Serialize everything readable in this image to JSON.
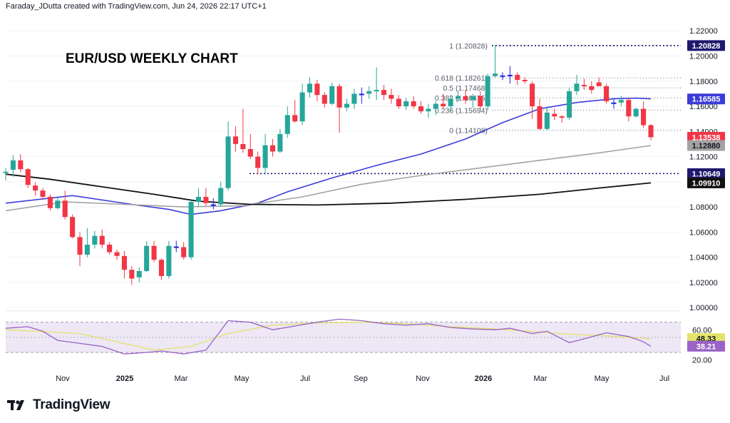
{
  "attribution": "Faraday_JDutta created with TradingView.com, Jun 24, 2026 22:17 UTC+1",
  "brand": {
    "name": "TradingView",
    "logo_icon": "tradingview-logo-icon"
  },
  "colors": {
    "up": "#26a69a",
    "down": "#f23645",
    "neutral": "#1e22e8",
    "ma_fast": "#3c3cd9",
    "ma_mid": "#a3a3a3",
    "ma_slow": "#111111",
    "rsi": "#9a63c7",
    "rsi_ma": "#e3e36b",
    "rsi_band": "#ede7f6"
  },
  "chart_data": [
    {
      "type": "candlestick",
      "title": "EUR/USD WEEKLY CHART",
      "x_labels": [
        "Nov",
        "2025",
        "Mar",
        "May",
        "Jul",
        "Sep",
        "Nov",
        "2026",
        "Mar",
        "May",
        "Jul"
      ],
      "y_ticks": [
        "1.22000",
        "1.20000",
        "1.18000",
        "1.16000",
        "1.14000",
        "1.12000",
        "1.10000",
        "1.08000",
        "1.06000",
        "1.04000",
        "1.02000",
        "1.00000"
      ],
      "ylim": [
        0.9995,
        1.2275
      ],
      "candles": [
        {
          "o": 1.107,
          "h": 1.111,
          "l": 1.101,
          "c": 1.108
        },
        {
          "o": 1.1095,
          "h": 1.121,
          "l": 1.104,
          "c": 1.117
        },
        {
          "o": 1.117,
          "h": 1.122,
          "l": 1.1075,
          "c": 1.11
        },
        {
          "o": 1.11,
          "h": 1.111,
          "l": 1.095,
          "c": 1.0975
        },
        {
          "o": 1.097,
          "h": 1.0995,
          "l": 1.089,
          "c": 1.093
        },
        {
          "o": 1.093,
          "h": 1.095,
          "l": 1.086,
          "c": 1.088
        },
        {
          "o": 1.088,
          "h": 1.09,
          "l": 1.077,
          "c": 1.079
        },
        {
          "o": 1.079,
          "h": 1.087,
          "l": 1.078,
          "c": 1.085
        },
        {
          "o": 1.085,
          "h": 1.093,
          "l": 1.07,
          "c": 1.072
        },
        {
          "o": 1.072,
          "h": 1.074,
          "l": 1.055,
          "c": 1.056
        },
        {
          "o": 1.056,
          "h": 1.06,
          "l": 1.033,
          "c": 1.042
        },
        {
          "o": 1.042,
          "h": 1.063,
          "l": 1.04,
          "c": 1.05
        },
        {
          "o": 1.05,
          "h": 1.061,
          "l": 1.047,
          "c": 1.057
        },
        {
          "o": 1.057,
          "h": 1.062,
          "l": 1.047,
          "c": 1.05
        },
        {
          "o": 1.05,
          "h": 1.052,
          "l": 1.042,
          "c": 1.044
        },
        {
          "o": 1.044,
          "h": 1.046,
          "l": 1.038,
          "c": 1.041
        },
        {
          "o": 1.041,
          "h": 1.045,
          "l": 1.023,
          "c": 1.03
        },
        {
          "o": 1.03,
          "h": 1.033,
          "l": 1.018,
          "c": 1.023
        },
        {
          "o": 1.024,
          "h": 1.032,
          "l": 1.02,
          "c": 1.029
        },
        {
          "o": 1.029,
          "h": 1.053,
          "l": 1.028,
          "c": 1.049
        },
        {
          "o": 1.049,
          "h": 1.053,
          "l": 1.036,
          "c": 1.038
        },
        {
          "o": 1.038,
          "h": 1.039,
          "l": 1.022,
          "c": 1.025
        },
        {
          "o": 1.025,
          "h": 1.053,
          "l": 1.023,
          "c": 1.049
        },
        {
          "o": 1.0485,
          "h": 1.053,
          "l": 1.044,
          "c": 1.048
        },
        {
          "o": 1.048,
          "h": 1.052,
          "l": 1.038,
          "c": 1.04
        },
        {
          "o": 1.04,
          "h": 1.085,
          "l": 1.038,
          "c": 1.084
        },
        {
          "o": 1.084,
          "h": 1.095,
          "l": 1.08,
          "c": 1.088
        },
        {
          "o": 1.088,
          "h": 1.095,
          "l": 1.081,
          "c": 1.083
        },
        {
          "o": 1.0815,
          "h": 1.087,
          "l": 1.078,
          "c": 1.082
        },
        {
          "o": 1.082,
          "h": 1.1,
          "l": 1.08,
          "c": 1.095
        },
        {
          "o": 1.095,
          "h": 1.148,
          "l": 1.093,
          "c": 1.136
        },
        {
          "o": 1.136,
          "h": 1.144,
          "l": 1.124,
          "c": 1.13
        },
        {
          "o": 1.13,
          "h": 1.158,
          "l": 1.123,
          "c": 1.126
        },
        {
          "o": 1.126,
          "h": 1.138,
          "l": 1.118,
          "c": 1.12
        },
        {
          "o": 1.12,
          "h": 1.124,
          "l": 1.106,
          "c": 1.111
        },
        {
          "o": 1.111,
          "h": 1.138,
          "l": 1.106,
          "c": 1.129
        },
        {
          "o": 1.129,
          "h": 1.134,
          "l": 1.12,
          "c": 1.124
        },
        {
          "o": 1.124,
          "h": 1.142,
          "l": 1.123,
          "c": 1.138
        },
        {
          "o": 1.138,
          "h": 1.16,
          "l": 1.135,
          "c": 1.153
        },
        {
          "o": 1.153,
          "h": 1.165,
          "l": 1.147,
          "c": 1.148
        },
        {
          "o": 1.148,
          "h": 1.178,
          "l": 1.145,
          "c": 1.171
        },
        {
          "o": 1.171,
          "h": 1.183,
          "l": 1.167,
          "c": 1.178
        },
        {
          "o": 1.178,
          "h": 1.181,
          "l": 1.164,
          "c": 1.169
        },
        {
          "o": 1.169,
          "h": 1.171,
          "l": 1.159,
          "c": 1.162
        },
        {
          "o": 1.162,
          "h": 1.179,
          "l": 1.161,
          "c": 1.176
        },
        {
          "o": 1.176,
          "h": 1.178,
          "l": 1.139,
          "c": 1.159
        },
        {
          "o": 1.159,
          "h": 1.166,
          "l": 1.156,
          "c": 1.162
        },
        {
          "o": 1.162,
          "h": 1.174,
          "l": 1.158,
          "c": 1.17
        },
        {
          "o": 1.1695,
          "h": 1.175,
          "l": 1.162,
          "c": 1.17
        },
        {
          "o": 1.17,
          "h": 1.176,
          "l": 1.166,
          "c": 1.172
        },
        {
          "o": 1.172,
          "h": 1.191,
          "l": 1.165,
          "c": 1.173
        },
        {
          "o": 1.173,
          "h": 1.177,
          "l": 1.165,
          "c": 1.169
        },
        {
          "o": 1.169,
          "h": 1.174,
          "l": 1.162,
          "c": 1.166
        },
        {
          "o": 1.166,
          "h": 1.169,
          "l": 1.158,
          "c": 1.16
        },
        {
          "o": 1.16,
          "h": 1.167,
          "l": 1.157,
          "c": 1.164
        },
        {
          "o": 1.164,
          "h": 1.168,
          "l": 1.158,
          "c": 1.16
        },
        {
          "o": 1.16,
          "h": 1.164,
          "l": 1.154,
          "c": 1.156
        },
        {
          "o": 1.156,
          "h": 1.162,
          "l": 1.151,
          "c": 1.158
        },
        {
          "o": 1.158,
          "h": 1.164,
          "l": 1.153,
          "c": 1.162
        },
        {
          "o": 1.162,
          "h": 1.17,
          "l": 1.158,
          "c": 1.16
        },
        {
          "o": 1.16,
          "h": 1.169,
          "l": 1.156,
          "c": 1.166
        },
        {
          "o": 1.166,
          "h": 1.172,
          "l": 1.164,
          "c": 1.168
        },
        {
          "o": 1.168,
          "h": 1.173,
          "l": 1.162,
          "c": 1.165
        },
        {
          "o": 1.165,
          "h": 1.17,
          "l": 1.159,
          "c": 1.168
        },
        {
          "o": 1.168,
          "h": 1.172,
          "l": 1.158,
          "c": 1.16
        },
        {
          "o": 1.16,
          "h": 1.186,
          "l": 1.157,
          "c": 1.184
        },
        {
          "o": 1.184,
          "h": 1.2083,
          "l": 1.183,
          "c": 1.186
        },
        {
          "o": 1.1845,
          "h": 1.187,
          "l": 1.181,
          "c": 1.184
        },
        {
          "o": 1.185,
          "h": 1.192,
          "l": 1.178,
          "c": 1.185
        },
        {
          "o": 1.185,
          "h": 1.187,
          "l": 1.177,
          "c": 1.181
        },
        {
          "o": 1.181,
          "h": 1.183,
          "l": 1.178,
          "c": 1.18
        },
        {
          "o": 1.178,
          "h": 1.18,
          "l": 1.15,
          "c": 1.16
        },
        {
          "o": 1.16,
          "h": 1.166,
          "l": 1.141,
          "c": 1.142
        },
        {
          "o": 1.142,
          "h": 1.16,
          "l": 1.141,
          "c": 1.155
        },
        {
          "o": 1.154,
          "h": 1.158,
          "l": 1.149,
          "c": 1.152
        },
        {
          "o": 1.152,
          "h": 1.153,
          "l": 1.147,
          "c": 1.151
        },
        {
          "o": 1.151,
          "h": 1.175,
          "l": 1.149,
          "c": 1.172
        },
        {
          "o": 1.172,
          "h": 1.185,
          "l": 1.169,
          "c": 1.178
        },
        {
          "o": 1.177,
          "h": 1.182,
          "l": 1.173,
          "c": 1.176
        },
        {
          "o": 1.176,
          "h": 1.18,
          "l": 1.17,
          "c": 1.173
        },
        {
          "o": 1.179,
          "h": 1.183,
          "l": 1.176,
          "c": 1.176
        },
        {
          "o": 1.176,
          "h": 1.178,
          "l": 1.162,
          "c": 1.164
        },
        {
          "o": 1.163,
          "h": 1.166,
          "l": 1.158,
          "c": 1.163
        },
        {
          "o": 1.163,
          "h": 1.168,
          "l": 1.16,
          "c": 1.165
        },
        {
          "o": 1.165,
          "h": 1.166,
          "l": 1.148,
          "c": 1.152
        },
        {
          "o": 1.152,
          "h": 1.159,
          "l": 1.151,
          "c": 1.158
        },
        {
          "o": 1.158,
          "h": 1.164,
          "l": 1.143,
          "c": 1.145
        },
        {
          "o": 1.145,
          "h": 1.146,
          "l": 1.133,
          "c": 1.1354
        }
      ],
      "moving_averages": [
        {
          "color_key": "ma_fast",
          "points": [
            [
              0,
              1.083
            ],
            [
              9,
              1.089
            ],
            [
              17,
              1.082
            ],
            [
              22,
              1.078
            ],
            [
              25,
              1.074
            ],
            [
              29,
              1.077
            ],
            [
              34,
              1.083
            ],
            [
              38,
              1.092
            ],
            [
              44,
              1.103
            ],
            [
              50,
              1.113
            ],
            [
              56,
              1.122
            ],
            [
              62,
              1.134
            ],
            [
              67,
              1.147
            ],
            [
              72,
              1.158
            ],
            [
              77,
              1.163
            ],
            [
              82,
              1.166
            ],
            [
              85,
              1.1665
            ],
            [
              87,
              1.1659
            ]
          ]
        },
        {
          "color_key": "ma_mid",
          "points": [
            [
              0,
              1.077
            ],
            [
              8,
              1.084
            ],
            [
              16,
              1.082
            ],
            [
              24,
              1.08
            ],
            [
              32,
              1.081
            ],
            [
              40,
              1.088
            ],
            [
              48,
              1.098
            ],
            [
              56,
              1.105
            ],
            [
              64,
              1.111
            ],
            [
              72,
              1.117
            ],
            [
              80,
              1.123
            ],
            [
              87,
              1.1288
            ]
          ]
        },
        {
          "color_key": "ma_slow",
          "points": [
            [
              0,
              1.106
            ],
            [
              6,
              1.102
            ],
            [
              13,
              1.096
            ],
            [
              20,
              1.09
            ],
            [
              26,
              1.0845
            ],
            [
              33,
              1.082
            ],
            [
              42,
              1.0815
            ],
            [
              52,
              1.083
            ],
            [
              62,
              1.086
            ],
            [
              72,
              1.09
            ],
            [
              80,
              1.095
            ],
            [
              87,
              1.0991
            ]
          ]
        }
      ],
      "horizontal_lines": [
        {
          "value": 1.20828,
          "color": "#1e1a6e"
        },
        {
          "value": 1.10649,
          "color": "#1e1a6e"
        }
      ],
      "fibonacci": {
        "levels": [
          {
            "value": 1.20828,
            "label": "1 (1.20828)"
          },
          {
            "value": 1.18261,
            "label": "0.618 (1.18261)"
          },
          {
            "value": 1.17468,
            "label": "0.5 (1.17468)"
          },
          {
            "value": 1.16675,
            "label": "0.382 (1.16675)"
          },
          {
            "value": 1.15694,
            "label": "0.236 (1.15694)"
          },
          {
            "value": 1.14108,
            "label": "0 (1.14108)"
          }
        ]
      },
      "price_tags": [
        {
          "value": 1.20828,
          "text": "1.20828",
          "bg": "#1e1a6e",
          "fg": "#ffffff"
        },
        {
          "value": 1.16585,
          "text": "1.16585",
          "bg": "#3c3cd9",
          "fg": "#ffffff"
        },
        {
          "value": 1.13538,
          "text": "1.13538",
          "bg": "#f23645",
          "fg": "#ffffff"
        },
        {
          "value": 1.1288,
          "text": "1.12880",
          "bg": "#a3a3a3",
          "fg": "#131722"
        },
        {
          "value": 1.10649,
          "text": "1.10649",
          "bg": "#1e1a6e",
          "fg": "#ffffff"
        },
        {
          "value": 1.0991,
          "text": "1.09910",
          "bg": "#111111",
          "fg": "#ffffff"
        }
      ]
    },
    {
      "type": "line",
      "y_ticks": [
        "60.00",
        "20.00"
      ],
      "ylim": [
        15,
        81
      ],
      "band": [
        30,
        70
      ],
      "rsi": [
        [
          0,
          62
        ],
        [
          3,
          64
        ],
        [
          5,
          58
        ],
        [
          7,
          46
        ],
        [
          10,
          42
        ],
        [
          13,
          38
        ],
        [
          16,
          28
        ],
        [
          19,
          30
        ],
        [
          21,
          32
        ],
        [
          24,
          28
        ],
        [
          27,
          33
        ],
        [
          30,
          72
        ],
        [
          33,
          70
        ],
        [
          36,
          60
        ],
        [
          39,
          65
        ],
        [
          42,
          70
        ],
        [
          45,
          74
        ],
        [
          48,
          72
        ],
        [
          51,
          68
        ],
        [
          54,
          66
        ],
        [
          57,
          68
        ],
        [
          60,
          63
        ],
        [
          63,
          61
        ],
        [
          66,
          60
        ],
        [
          68,
          62
        ],
        [
          71,
          55
        ],
        [
          73,
          58
        ],
        [
          76,
          43
        ],
        [
          78,
          48
        ],
        [
          81,
          56
        ],
        [
          84,
          51
        ],
        [
          86,
          44
        ],
        [
          87,
          38
        ]
      ],
      "rsi_ma": [
        [
          0,
          60
        ],
        [
          10,
          55
        ],
        [
          20,
          33
        ],
        [
          25,
          38
        ],
        [
          30,
          55
        ],
        [
          36,
          66
        ],
        [
          42,
          69
        ],
        [
          48,
          70
        ],
        [
          54,
          68
        ],
        [
          60,
          64
        ],
        [
          66,
          61
        ],
        [
          72,
          57
        ],
        [
          76,
          54
        ],
        [
          81,
          52
        ],
        [
          87,
          48
        ]
      ],
      "price_tags": [
        {
          "value": 48.33,
          "text": "48.33",
          "bg": "#e3e36b",
          "fg": "#131722"
        },
        {
          "value": 38.21,
          "text": "38.21",
          "bg": "#9a63c7",
          "fg": "#ffffff"
        }
      ]
    }
  ]
}
